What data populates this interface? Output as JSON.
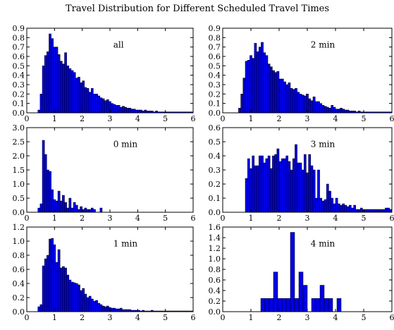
{
  "title": "Travel Distribution for Different Scheduled Travel Times",
  "colors": {
    "bar_fill": "#0000e6",
    "bar_edge": "#000000",
    "axes": "#000000"
  },
  "chart_data": [
    {
      "type": "bar",
      "annotation": "all",
      "xlim": [
        0,
        6
      ],
      "ylim": [
        0,
        0.9
      ],
      "xticks": [
        "0",
        "1",
        "2",
        "3",
        "4",
        "5",
        "6"
      ],
      "yticks": [
        "0.0",
        "0.1",
        "0.2",
        "0.3",
        "0.4",
        "0.5",
        "0.6",
        "0.7",
        "0.8",
        "0.9"
      ],
      "bin_width": 0.08,
      "bin_start": [
        0.4,
        0.48,
        0.56,
        0.64,
        0.72,
        0.8,
        0.88,
        0.96,
        1.04,
        1.12,
        1.2,
        1.28,
        1.36,
        1.44,
        1.52,
        1.6,
        1.68,
        1.76,
        1.84,
        1.92,
        2.0,
        2.08,
        2.16,
        2.24,
        2.32,
        2.4,
        2.48,
        2.56,
        2.64,
        2.72,
        2.8,
        2.88,
        2.96,
        3.04,
        3.12,
        3.2,
        3.28,
        3.36,
        3.44,
        3.52,
        3.6,
        3.68,
        3.76,
        3.84,
        3.92,
        4.0,
        4.08,
        4.16,
        4.24,
        4.32,
        4.4,
        4.48,
        4.56,
        4.64,
        4.72,
        4.8,
        4.88,
        4.96,
        5.04,
        5.12,
        5.2,
        5.28,
        5.36,
        5.44,
        5.52,
        5.6,
        5.68,
        5.76,
        5.84,
        5.92
      ],
      "values": [
        0.03,
        0.2,
        0.5,
        0.61,
        0.65,
        0.84,
        0.79,
        0.7,
        0.7,
        0.62,
        0.55,
        0.52,
        0.64,
        0.5,
        0.47,
        0.45,
        0.43,
        0.37,
        0.38,
        0.32,
        0.34,
        0.27,
        0.26,
        0.22,
        0.26,
        0.2,
        0.2,
        0.18,
        0.16,
        0.15,
        0.13,
        0.14,
        0.12,
        0.1,
        0.09,
        0.08,
        0.08,
        0.06,
        0.07,
        0.06,
        0.05,
        0.05,
        0.04,
        0.04,
        0.03,
        0.03,
        0.03,
        0.02,
        0.03,
        0.02,
        0.02,
        0.02,
        0.01,
        0.02,
        0.01,
        0.01,
        0.01,
        0.01,
        0.01,
        0.01,
        0.01,
        0.01,
        0.01,
        0.01,
        0.01,
        0.01,
        0.01,
        0.01,
        0.01,
        0.01
      ]
    },
    {
      "type": "bar",
      "annotation": "2 min",
      "xlim": [
        0,
        6
      ],
      "ylim": [
        0,
        0.9
      ],
      "xticks": [
        "0",
        "1",
        "2",
        "3",
        "4",
        "5",
        "6"
      ],
      "yticks": [
        "0.0",
        "0.1",
        "0.2",
        "0.3",
        "0.4",
        "0.5",
        "0.6",
        "0.7",
        "0.8",
        "0.9"
      ],
      "bin_width": 0.08,
      "bin_start": [
        0.56,
        0.64,
        0.72,
        0.8,
        0.88,
        0.96,
        1.04,
        1.12,
        1.2,
        1.28,
        1.36,
        1.44,
        1.52,
        1.6,
        1.68,
        1.76,
        1.84,
        1.92,
        2.0,
        2.08,
        2.16,
        2.24,
        2.32,
        2.4,
        2.48,
        2.56,
        2.64,
        2.72,
        2.8,
        2.88,
        2.96,
        3.04,
        3.12,
        3.2,
        3.28,
        3.36,
        3.44,
        3.52,
        3.6,
        3.68,
        3.76,
        3.84,
        3.92,
        4.0,
        4.08,
        4.16,
        4.24,
        4.32,
        4.4,
        4.48,
        4.56,
        4.64,
        4.72,
        4.8,
        4.88,
        4.96,
        5.04,
        5.12,
        5.2,
        5.28,
        5.36,
        5.44,
        5.52,
        5.6,
        5.68,
        5.76,
        5.84,
        5.92
      ],
      "values": [
        0.05,
        0.2,
        0.37,
        0.55,
        0.56,
        0.61,
        0.58,
        0.74,
        0.65,
        0.7,
        0.75,
        0.64,
        0.61,
        0.52,
        0.49,
        0.45,
        0.43,
        0.44,
        0.36,
        0.36,
        0.33,
        0.3,
        0.32,
        0.26,
        0.25,
        0.26,
        0.22,
        0.2,
        0.19,
        0.18,
        0.2,
        0.15,
        0.13,
        0.17,
        0.12,
        0.12,
        0.1,
        0.08,
        0.07,
        0.06,
        0.05,
        0.08,
        0.06,
        0.04,
        0.04,
        0.05,
        0.04,
        0.03,
        0.03,
        0.02,
        0.02,
        0.02,
        0.01,
        0.02,
        0.01,
        0.01,
        0.01,
        0.01,
        0.01,
        0.01,
        0.01,
        0.01,
        0.01,
        0.01,
        0.01,
        0.01,
        0.01,
        0.01
      ]
    },
    {
      "type": "bar",
      "annotation": "0 min",
      "xlim": [
        0,
        6
      ],
      "ylim": [
        0,
        3.0
      ],
      "xticks": [
        "0",
        "1",
        "2",
        "3",
        "4",
        "5",
        "6"
      ],
      "yticks": [
        "0.0",
        "0.5",
        "1.0",
        "1.5",
        "2.0",
        "2.5",
        "3.0"
      ],
      "bin_width": 0.08,
      "bin_start": [
        0.4,
        0.48,
        0.56,
        0.64,
        0.72,
        0.8,
        0.88,
        0.96,
        1.04,
        1.12,
        1.2,
        1.28,
        1.36,
        1.44,
        1.52,
        1.6,
        1.68,
        1.76,
        1.84,
        1.92,
        2.0,
        2.08,
        2.16,
        2.24,
        2.32,
        2.4,
        2.64
      ],
      "values": [
        0.15,
        0.3,
        2.55,
        2.05,
        1.5,
        1.45,
        0.8,
        0.45,
        0.4,
        0.75,
        0.4,
        0.6,
        0.35,
        0.15,
        0.5,
        0.15,
        0.35,
        0.25,
        0.1,
        0.2,
        0.1,
        0.15,
        0.1,
        0.1,
        0.15,
        0.1,
        0.15
      ]
    },
    {
      "type": "bar",
      "annotation": "3 min",
      "xlim": [
        0,
        6
      ],
      "ylim": [
        0,
        0.6
      ],
      "xticks": [
        "0",
        "1",
        "2",
        "3",
        "4",
        "5",
        "6"
      ],
      "yticks": [
        "0.0",
        "0.1",
        "0.2",
        "0.3",
        "0.4",
        "0.5",
        "0.6"
      ],
      "bin_width": 0.08,
      "bin_start": [
        0.8,
        0.88,
        0.96,
        1.04,
        1.12,
        1.2,
        1.28,
        1.36,
        1.44,
        1.52,
        1.6,
        1.68,
        1.76,
        1.84,
        1.92,
        2.0,
        2.08,
        2.16,
        2.24,
        2.32,
        2.4,
        2.48,
        2.56,
        2.64,
        2.72,
        2.8,
        2.88,
        2.96,
        3.04,
        3.12,
        3.2,
        3.28,
        3.36,
        3.44,
        3.52,
        3.6,
        3.68,
        3.76,
        3.84,
        3.92,
        4.0,
        4.08,
        4.16,
        4.24,
        4.32,
        4.4,
        4.48,
        4.56,
        4.64,
        4.72,
        4.8,
        4.88,
        4.96,
        5.04,
        5.12,
        5.2,
        5.28,
        5.36,
        5.44,
        5.52,
        5.6,
        5.68,
        5.76,
        5.84,
        5.92
      ],
      "values": [
        0.24,
        0.38,
        0.31,
        0.4,
        0.33,
        0.33,
        0.4,
        0.4,
        0.35,
        0.38,
        0.4,
        0.31,
        0.4,
        0.41,
        0.45,
        0.36,
        0.38,
        0.38,
        0.4,
        0.36,
        0.3,
        0.38,
        0.48,
        0.35,
        0.35,
        0.3,
        0.41,
        0.28,
        0.41,
        0.33,
        0.3,
        0.1,
        0.3,
        0.1,
        0.08,
        0.09,
        0.2,
        0.15,
        0.1,
        0.06,
        0.1,
        0.06,
        0.05,
        0.06,
        0.05,
        0.04,
        0.05,
        0.03,
        0.05,
        0.02,
        0.02,
        0.03,
        0.02,
        0.02,
        0.02,
        0.02,
        0.02,
        0.02,
        0.02,
        0.02,
        0.02,
        0.02,
        0.03,
        0.03,
        0.02
      ]
    },
    {
      "type": "bar",
      "annotation": "1 min",
      "xlim": [
        0,
        6
      ],
      "ylim": [
        0,
        1.2
      ],
      "xticks": [
        "0",
        "1",
        "2",
        "3",
        "4",
        "5",
        "6"
      ],
      "yticks": [
        "0.0",
        "0.2",
        "0.4",
        "0.6",
        "0.8",
        "1.0",
        "1.2"
      ],
      "bin_width": 0.08,
      "bin_start": [
        0.4,
        0.48,
        0.56,
        0.64,
        0.72,
        0.8,
        0.88,
        0.96,
        1.04,
        1.12,
        1.2,
        1.28,
        1.36,
        1.44,
        1.52,
        1.6,
        1.68,
        1.76,
        1.84,
        1.92,
        2.0,
        2.08,
        2.16,
        2.24,
        2.32,
        2.4,
        2.48,
        2.56,
        2.64,
        2.72,
        2.8,
        2.88,
        2.96,
        3.04,
        3.12,
        3.2,
        3.28,
        3.36,
        3.44,
        3.52,
        3.6,
        3.68,
        3.76,
        3.84,
        3.92,
        4.0,
        4.08,
        4.16,
        4.24,
        4.32,
        4.4,
        4.48,
        4.56,
        4.64,
        4.72,
        4.8,
        4.88,
        4.96,
        5.04,
        5.12,
        5.2,
        5.28,
        5.36,
        5.44,
        5.52,
        5.6,
        5.68,
        5.76,
        5.84,
        5.92
      ],
      "values": [
        0.07,
        0.1,
        0.65,
        0.75,
        0.8,
        1.03,
        1.04,
        0.95,
        0.7,
        0.88,
        0.62,
        0.64,
        0.62,
        0.52,
        0.45,
        0.42,
        0.41,
        0.4,
        0.38,
        0.3,
        0.33,
        0.25,
        0.2,
        0.22,
        0.18,
        0.15,
        0.16,
        0.12,
        0.1,
        0.08,
        0.07,
        0.08,
        0.06,
        0.05,
        0.05,
        0.04,
        0.04,
        0.05,
        0.03,
        0.03,
        0.03,
        0.03,
        0.02,
        0.02,
        0.02,
        0.02,
        0.01,
        0.02,
        0.01,
        0.01,
        0.01,
        0.02,
        0.01,
        0.01,
        0.01,
        0.01,
        0.01,
        0.01,
        0.01,
        0.01,
        0.01,
        0.01,
        0.01,
        0.01,
        0.01,
        0.01,
        0.01,
        0.01,
        0.01,
        0.01
      ]
    },
    {
      "type": "bar",
      "annotation": "4 min",
      "xlim": [
        0,
        6
      ],
      "ylim": [
        0,
        1.6
      ],
      "xticks": [
        "0",
        "1",
        "2",
        "3",
        "4",
        "5",
        "6"
      ],
      "yticks": [
        "0.0",
        "0.2",
        "0.4",
        "0.6",
        "0.8",
        "1.0",
        "1.2",
        "1.4",
        "1.6"
      ],
      "bin_width": 0.15,
      "bin_start": [
        1.35,
        1.5,
        1.65,
        1.8,
        1.95,
        2.1,
        2.25,
        2.4,
        2.55,
        2.7,
        2.85,
        3.0,
        3.15,
        3.3,
        3.45,
        3.6,
        3.75,
        4.05
      ],
      "values": [
        0.25,
        0.25,
        0.25,
        0.75,
        0.25,
        0.25,
        0.25,
        1.5,
        0.25,
        0.75,
        0.5,
        0.0,
        0.25,
        0.25,
        0.5,
        0.25,
        0.25,
        0.25
      ]
    }
  ]
}
